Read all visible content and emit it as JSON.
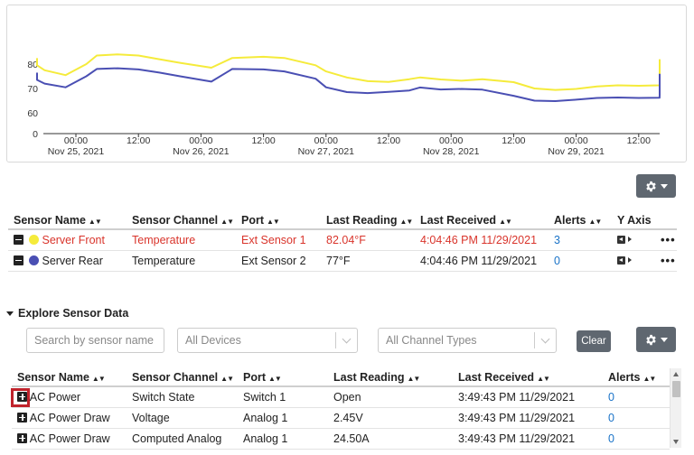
{
  "chart_data": {
    "type": "line",
    "y_ticks": [
      "0",
      "60",
      "70",
      "80"
    ],
    "x_ticks": [
      {
        "time": "00:00",
        "date": "Nov 25, 2021"
      },
      {
        "time": "12:00",
        "date": ""
      },
      {
        "time": "00:00",
        "date": "Nov 26, 2021"
      },
      {
        "time": "12:00",
        "date": ""
      },
      {
        "time": "00:00",
        "date": "Nov 27, 2021"
      },
      {
        "time": "12:00",
        "date": ""
      },
      {
        "time": "00:00",
        "date": "Nov 28, 2021"
      },
      {
        "time": "12:00",
        "date": ""
      },
      {
        "time": "00:00",
        "date": "Nov 29, 2021"
      },
      {
        "time": "12:00",
        "date": ""
      }
    ],
    "x_hours": [
      -18,
      -16,
      -12,
      -10,
      -6,
      -2,
      2,
      4,
      8,
      12,
      16,
      20,
      26,
      30,
      36,
      40,
      46,
      48,
      52,
      56,
      60,
      64,
      66,
      70,
      74,
      78,
      84,
      88,
      92,
      96,
      100,
      104,
      108,
      112,
      116,
      120,
      122
    ],
    "series": [
      {
        "name": "Server Front",
        "color": "#f5eb3b",
        "values": [
          81.5,
          82.2,
          81,
          79.5,
          77.5,
          75.5,
          80,
          83.5,
          84,
          83.5,
          82,
          80.5,
          78.5,
          82.5,
          83,
          82.5,
          79.5,
          77,
          74.5,
          73,
          72.7,
          73.8,
          74.5,
          73.7,
          73.2,
          73.8,
          72.6,
          70,
          69.4,
          69.8,
          70.8,
          71.3,
          71.1,
          71.3,
          72,
          74,
          82
        ]
      },
      {
        "name": "Server Rear",
        "color": "#4a4fb3",
        "values": [
          76,
          76.2,
          75.2,
          73.5,
          72,
          70.5,
          75,
          78,
          78.3,
          77.8,
          76.5,
          75,
          72.8,
          78,
          77.8,
          77,
          74,
          70.5,
          68.5,
          68.1,
          68.6,
          69.2,
          70.4,
          69.6,
          69.8,
          69.5,
          67,
          65,
          64.8,
          65.4,
          66.1,
          66.3,
          66.1,
          66.2,
          67.5,
          70.5,
          76
        ]
      }
    ]
  },
  "toolbar": {
    "gear_icon": "gear-icon"
  },
  "sensors_table": {
    "headers": [
      "Sensor Name",
      "Sensor Channel",
      "Port",
      "Last Reading",
      "Last Received",
      "Alerts",
      "Y Axis"
    ],
    "rows": [
      {
        "name": "Server Front",
        "dot_color": "#f5eb3b",
        "channel": "Temperature",
        "port": "Ext Sensor 1",
        "reading": "82.04°F",
        "received": "4:04:46 PM 11/29/2021",
        "alerts": "3",
        "more": "•••"
      },
      {
        "name": "Server Rear",
        "dot_color": "#4a4fb3",
        "channel": "Temperature",
        "port": "Ext Sensor 2",
        "reading": "77°F",
        "received": "4:04:46 PM 11/29/2021",
        "alerts": "0",
        "more": "•••"
      }
    ]
  },
  "explore": {
    "title": "Explore Sensor Data",
    "search_placeholder": "Search by sensor name",
    "devices_value": "All Devices",
    "channel_types_value": "All Channel Types",
    "clear_label": "Clear",
    "headers": [
      "Sensor Name",
      "Sensor Channel",
      "Port",
      "Last Reading",
      "Last Received",
      "Alerts"
    ],
    "rows": [
      {
        "name": "AC Power",
        "channel": "Switch State",
        "port": "Switch 1",
        "reading": "Open",
        "received": "3:49:43 PM 11/29/2021",
        "alerts": "0"
      },
      {
        "name": "AC Power Draw",
        "channel": "Voltage",
        "port": "Analog 1",
        "reading": "2.45V",
        "received": "3:49:43 PM 11/29/2021",
        "alerts": "0"
      },
      {
        "name": "AC Power Draw",
        "channel": "Computed Analog",
        "port": "Analog 1",
        "reading": "24.50A",
        "received": "3:49:43 PM 11/29/2021",
        "alerts": "0"
      }
    ]
  }
}
